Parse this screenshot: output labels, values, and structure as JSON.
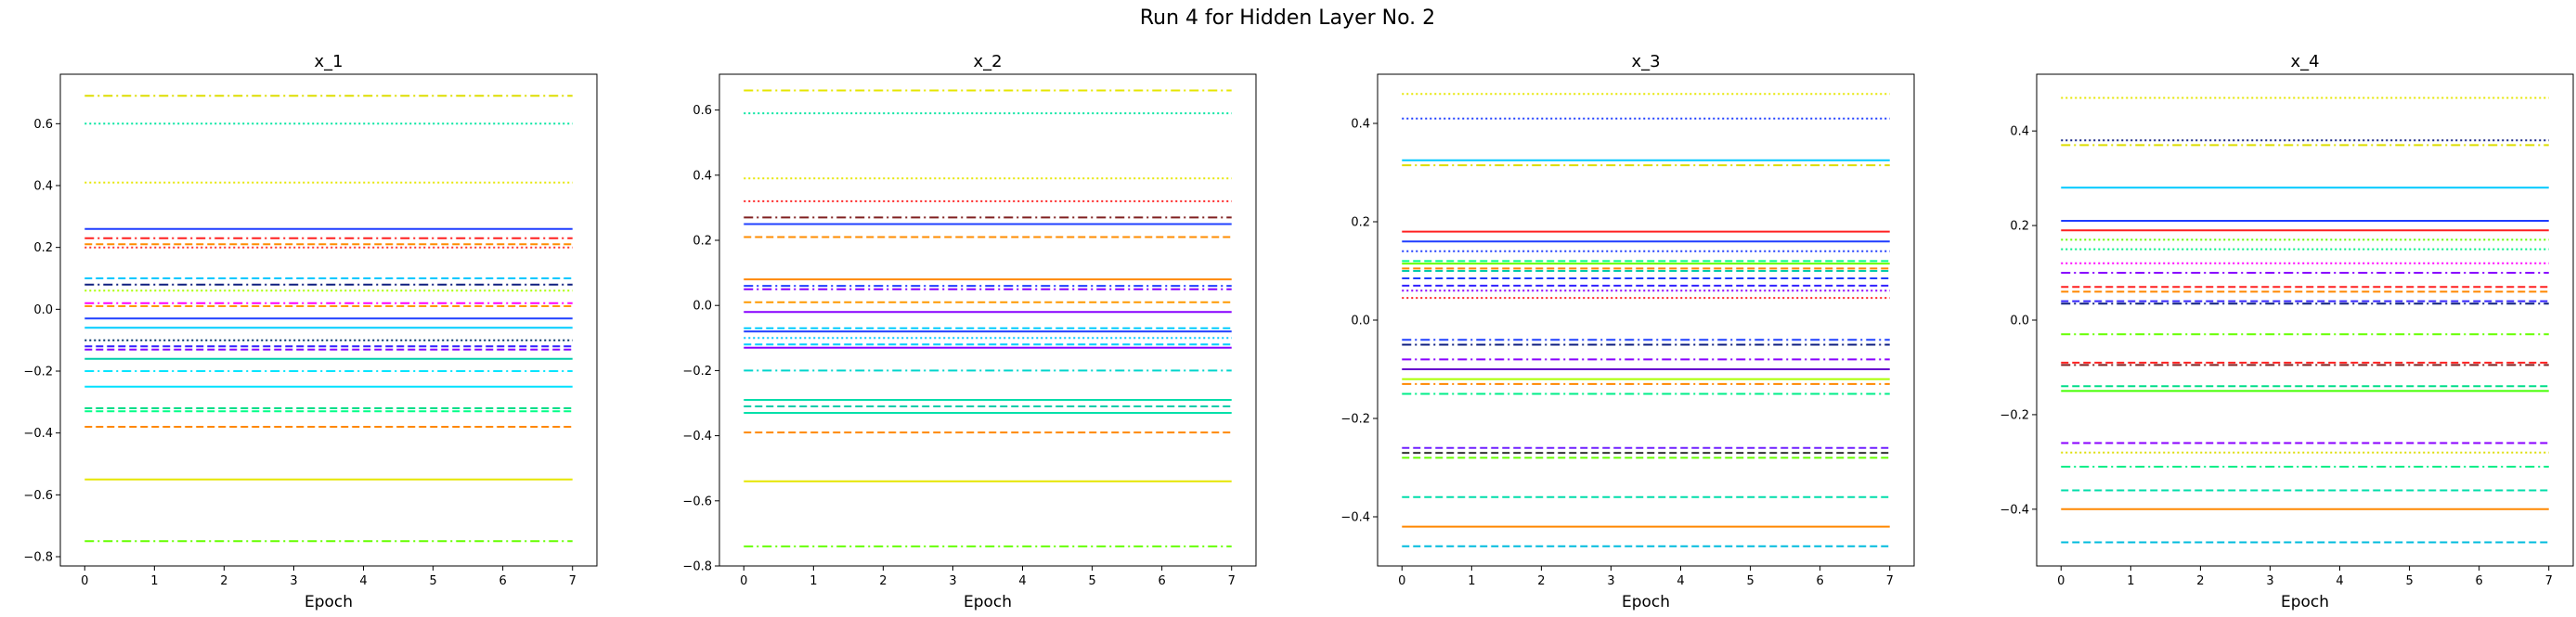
{
  "figure_title": "Run 4 for Hidden Layer No. 2",
  "chart_data": [
    {
      "type": "line",
      "title": "x_1",
      "xlabel": "Epoch",
      "ylabel": "",
      "x": [
        0,
        1,
        2,
        3,
        4,
        5,
        6,
        7
      ],
      "xticks": [
        "0",
        "1",
        "2",
        "3",
        "4",
        "5",
        "6",
        "7"
      ],
      "ylim": [
        -0.83,
        0.76
      ],
      "yticks": [
        "-0.8",
        "-0.6",
        "-0.4",
        "-0.2",
        "0.0",
        "0.2",
        "0.4",
        "0.6"
      ],
      "grid": false,
      "series": [
        {
          "value": 0.69,
          "color": "#dddd00",
          "dash": "dashdot"
        },
        {
          "value": 0.6,
          "color": "#00e5a0",
          "dash": "dotted"
        },
        {
          "value": 0.41,
          "color": "#e6e600",
          "dash": "dotted"
        },
        {
          "value": 0.26,
          "color": "#1f3dff",
          "dash": "solid"
        },
        {
          "value": 0.23,
          "color": "#ff2020",
          "dash": "dashdot"
        },
        {
          "value": 0.21,
          "color": "#ff8c00",
          "dash": "dashed"
        },
        {
          "value": 0.2,
          "color": "#ff3030",
          "dash": "dotted"
        },
        {
          "value": 0.1,
          "color": "#00c8ff",
          "dash": "dashed"
        },
        {
          "value": 0.08,
          "color": "#102080",
          "dash": "dashdot"
        },
        {
          "value": 0.06,
          "color": "#aaff00",
          "dash": "dotted"
        },
        {
          "value": 0.02,
          "color": "#ff00ff",
          "dash": "dashdot"
        },
        {
          "value": 0.01,
          "color": "#ff9900",
          "dash": "dashed"
        },
        {
          "value": -0.03,
          "color": "#2040ff",
          "dash": "solid"
        },
        {
          "value": -0.06,
          "color": "#00ccff",
          "dash": "solid"
        },
        {
          "value": -0.1,
          "color": "#003366",
          "dash": "dotted"
        },
        {
          "value": -0.12,
          "color": "#3020ff",
          "dash": "dashed"
        },
        {
          "value": -0.13,
          "color": "#8800ff",
          "dash": "dashed"
        },
        {
          "value": -0.16,
          "color": "#00ccaa",
          "dash": "solid"
        },
        {
          "value": -0.2,
          "color": "#00e5ff",
          "dash": "dashdot"
        },
        {
          "value": -0.25,
          "color": "#00e0ff",
          "dash": "solid"
        },
        {
          "value": -0.32,
          "color": "#00dd88",
          "dash": "dashed"
        },
        {
          "value": -0.33,
          "color": "#00ff88",
          "dash": "dashed"
        },
        {
          "value": -0.38,
          "color": "#ff8800",
          "dash": "dashed"
        },
        {
          "value": -0.55,
          "color": "#e6e600",
          "dash": "solid"
        },
        {
          "value": -0.75,
          "color": "#66ff00",
          "dash": "dashdot"
        }
      ]
    },
    {
      "type": "line",
      "title": "x_2",
      "xlabel": "Epoch",
      "ylabel": "",
      "x": [
        0,
        1,
        2,
        3,
        4,
        5,
        6,
        7
      ],
      "xticks": [
        "0",
        "1",
        "2",
        "3",
        "4",
        "5",
        "6",
        "7"
      ],
      "ylim": [
        -0.8,
        0.71
      ],
      "yticks": [
        "-0.8",
        "-0.6",
        "-0.4",
        "-0.2",
        "0.0",
        "0.2",
        "0.4",
        "0.6"
      ],
      "grid": false,
      "series": [
        {
          "value": 0.66,
          "color": "#e6e600",
          "dash": "dashdot"
        },
        {
          "value": 0.59,
          "color": "#00e5a0",
          "dash": "dotted"
        },
        {
          "value": 0.39,
          "color": "#e6e600",
          "dash": "dotted"
        },
        {
          "value": 0.32,
          "color": "#ff2020",
          "dash": "dotted"
        },
        {
          "value": 0.27,
          "color": "#802020",
          "dash": "dashdot"
        },
        {
          "value": 0.25,
          "color": "#2040ff",
          "dash": "solid"
        },
        {
          "value": 0.21,
          "color": "#ff8c00",
          "dash": "dashed"
        },
        {
          "value": 0.08,
          "color": "#ff8800",
          "dash": "solid"
        },
        {
          "value": 0.06,
          "color": "#2040ff",
          "dash": "dashdot"
        },
        {
          "value": 0.05,
          "color": "#8800ff",
          "dash": "dashdot"
        },
        {
          "value": 0.01,
          "color": "#ff9900",
          "dash": "dashed"
        },
        {
          "value": -0.02,
          "color": "#8800ff",
          "dash": "solid"
        },
        {
          "value": -0.07,
          "color": "#00ccff",
          "dash": "dashed"
        },
        {
          "value": -0.08,
          "color": "#1f3dff",
          "dash": "solid"
        },
        {
          "value": -0.1,
          "color": "#00c8ff",
          "dash": "dotted"
        },
        {
          "value": -0.12,
          "color": "#00ccff",
          "dash": "dashed"
        },
        {
          "value": -0.13,
          "color": "#8800ff",
          "dash": "solid"
        },
        {
          "value": -0.2,
          "color": "#00d5cc",
          "dash": "dashdot"
        },
        {
          "value": -0.29,
          "color": "#00ddaa",
          "dash": "solid"
        },
        {
          "value": -0.31,
          "color": "#00ccaa",
          "dash": "dashed"
        },
        {
          "value": -0.33,
          "color": "#00e0aa",
          "dash": "solid"
        },
        {
          "value": -0.39,
          "color": "#ff8800",
          "dash": "dashed"
        },
        {
          "value": -0.54,
          "color": "#e6e600",
          "dash": "solid"
        },
        {
          "value": -0.74,
          "color": "#66ff00",
          "dash": "dashdot"
        }
      ]
    },
    {
      "type": "line",
      "title": "x_3",
      "xlabel": "Epoch",
      "ylabel": "",
      "x": [
        0,
        1,
        2,
        3,
        4,
        5,
        6,
        7
      ],
      "xticks": [
        "0",
        "1",
        "2",
        "3",
        "4",
        "5",
        "6",
        "7"
      ],
      "ylim": [
        -0.5,
        0.5
      ],
      "yticks": [
        "-0.4",
        "-0.2",
        "0.0",
        "0.2",
        "0.4"
      ],
      "grid": false,
      "series": [
        {
          "value": 0.46,
          "color": "#e6e600",
          "dash": "dotted"
        },
        {
          "value": 0.41,
          "color": "#1f3dff",
          "dash": "dotted"
        },
        {
          "value": 0.325,
          "color": "#00c8ff",
          "dash": "solid"
        },
        {
          "value": 0.315,
          "color": "#dddd00",
          "dash": "dashdot"
        },
        {
          "value": 0.18,
          "color": "#ff2020",
          "dash": "solid"
        },
        {
          "value": 0.16,
          "color": "#1f3dff",
          "dash": "solid"
        },
        {
          "value": 0.14,
          "color": "#1f3dff",
          "dash": "dotted"
        },
        {
          "value": 0.12,
          "color": "#00ff88",
          "dash": "dashed"
        },
        {
          "value": 0.115,
          "color": "#66ff00",
          "dash": "solid"
        },
        {
          "value": 0.105,
          "color": "#ff8800",
          "dash": "dashed"
        },
        {
          "value": 0.1,
          "color": "#00ccaa",
          "dash": "dashed"
        },
        {
          "value": 0.085,
          "color": "#1f3dff",
          "dash": "dashed"
        },
        {
          "value": 0.07,
          "color": "#3020ff",
          "dash": "dashed"
        },
        {
          "value": 0.06,
          "color": "#8800ff",
          "dash": "dotted"
        },
        {
          "value": 0.045,
          "color": "#ff2020",
          "dash": "dotted"
        },
        {
          "value": -0.04,
          "color": "#2040ff",
          "dash": "dashdot"
        },
        {
          "value": -0.05,
          "color": "#102080",
          "dash": "dashdot"
        },
        {
          "value": -0.08,
          "color": "#8800ff",
          "dash": "dashdot"
        },
        {
          "value": -0.1,
          "color": "#6600cc",
          "dash": "solid"
        },
        {
          "value": -0.12,
          "color": "#aaff00",
          "dash": "solid"
        },
        {
          "value": -0.13,
          "color": "#ff8800",
          "dash": "dashdot"
        },
        {
          "value": -0.15,
          "color": "#00ee88",
          "dash": "dashdot"
        },
        {
          "value": -0.26,
          "color": "#7020ff",
          "dash": "dashed"
        },
        {
          "value": -0.27,
          "color": "#333333",
          "dash": "dashed"
        },
        {
          "value": -0.28,
          "color": "#66ff00",
          "dash": "dashed"
        },
        {
          "value": -0.36,
          "color": "#00ddaa",
          "dash": "dashed"
        },
        {
          "value": -0.42,
          "color": "#ff8800",
          "dash": "solid"
        },
        {
          "value": -0.46,
          "color": "#00bbdd",
          "dash": "dashed"
        }
      ]
    },
    {
      "type": "line",
      "title": "x_4",
      "xlabel": "Epoch",
      "ylabel": "",
      "x": [
        0,
        1,
        2,
        3,
        4,
        5,
        6,
        7
      ],
      "xticks": [
        "0",
        "1",
        "2",
        "3",
        "4",
        "5",
        "6",
        "7"
      ],
      "ylim": [
        -0.52,
        0.52
      ],
      "yticks": [
        "-0.4",
        "-0.2",
        "0.0",
        "0.2",
        "0.4"
      ],
      "grid": false,
      "series": [
        {
          "value": 0.47,
          "color": "#e6e600",
          "dash": "dotted"
        },
        {
          "value": 0.38,
          "color": "#102080",
          "dash": "dotted"
        },
        {
          "value": 0.37,
          "color": "#dddd00",
          "dash": "dashdot"
        },
        {
          "value": 0.28,
          "color": "#00c8ff",
          "dash": "solid"
        },
        {
          "value": 0.21,
          "color": "#1f3dff",
          "dash": "solid"
        },
        {
          "value": 0.19,
          "color": "#ff2020",
          "dash": "solid"
        },
        {
          "value": 0.17,
          "color": "#66ff00",
          "dash": "dotted"
        },
        {
          "value": 0.15,
          "color": "#00ee88",
          "dash": "dotted"
        },
        {
          "value": 0.12,
          "color": "#ff00ff",
          "dash": "dotted"
        },
        {
          "value": 0.1,
          "color": "#8800ff",
          "dash": "dashdot"
        },
        {
          "value": 0.07,
          "color": "#ff2020",
          "dash": "dashed"
        },
        {
          "value": 0.06,
          "color": "#ff8800",
          "dash": "dashed"
        },
        {
          "value": 0.04,
          "color": "#3020ff",
          "dash": "dashed"
        },
        {
          "value": 0.035,
          "color": "#102080",
          "dash": "dashdot"
        },
        {
          "value": -0.03,
          "color": "#66ff00",
          "dash": "dashdot"
        },
        {
          "value": -0.09,
          "color": "#ff2020",
          "dash": "dashed"
        },
        {
          "value": -0.095,
          "color": "#802020",
          "dash": "dashdot"
        },
        {
          "value": -0.14,
          "color": "#00dd88",
          "dash": "dashed"
        },
        {
          "value": -0.15,
          "color": "#44ff00",
          "dash": "solid"
        },
        {
          "value": -0.26,
          "color": "#8800ff",
          "dash": "dashed"
        },
        {
          "value": -0.28,
          "color": "#dddd00",
          "dash": "dotted"
        },
        {
          "value": -0.31,
          "color": "#00ee88",
          "dash": "dashdot"
        },
        {
          "value": -0.36,
          "color": "#00ddaa",
          "dash": "dashed"
        },
        {
          "value": -0.4,
          "color": "#ff8800",
          "dash": "solid"
        },
        {
          "value": -0.47,
          "color": "#00bbdd",
          "dash": "dashed"
        }
      ]
    }
  ]
}
